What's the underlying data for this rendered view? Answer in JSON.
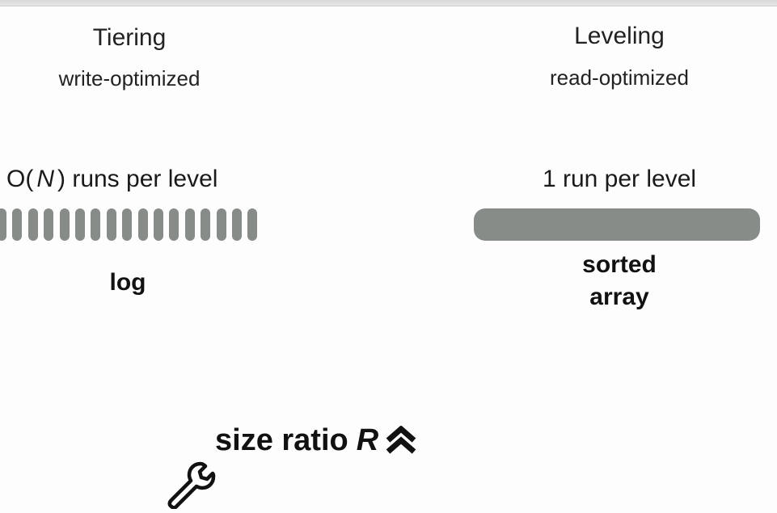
{
  "tiering": {
    "title": "Tiering",
    "subtitle": "write-optimized",
    "runs_prefix": "O(",
    "runs_var": "N",
    "runs_suffix": ") runs per level",
    "run_count": 17,
    "structure": "log"
  },
  "leveling": {
    "title": "Leveling",
    "subtitle": "read-optimized",
    "runs_label": "1 run per level",
    "structure_line1": "sorted",
    "structure_line2": "array"
  },
  "tuning": {
    "label": "size ratio",
    "var": "R",
    "icon": "double-chevron-up-icon",
    "tool_icon": "wrench-icon"
  },
  "colors": {
    "run_fill": "#888c89",
    "text": "#111111"
  }
}
